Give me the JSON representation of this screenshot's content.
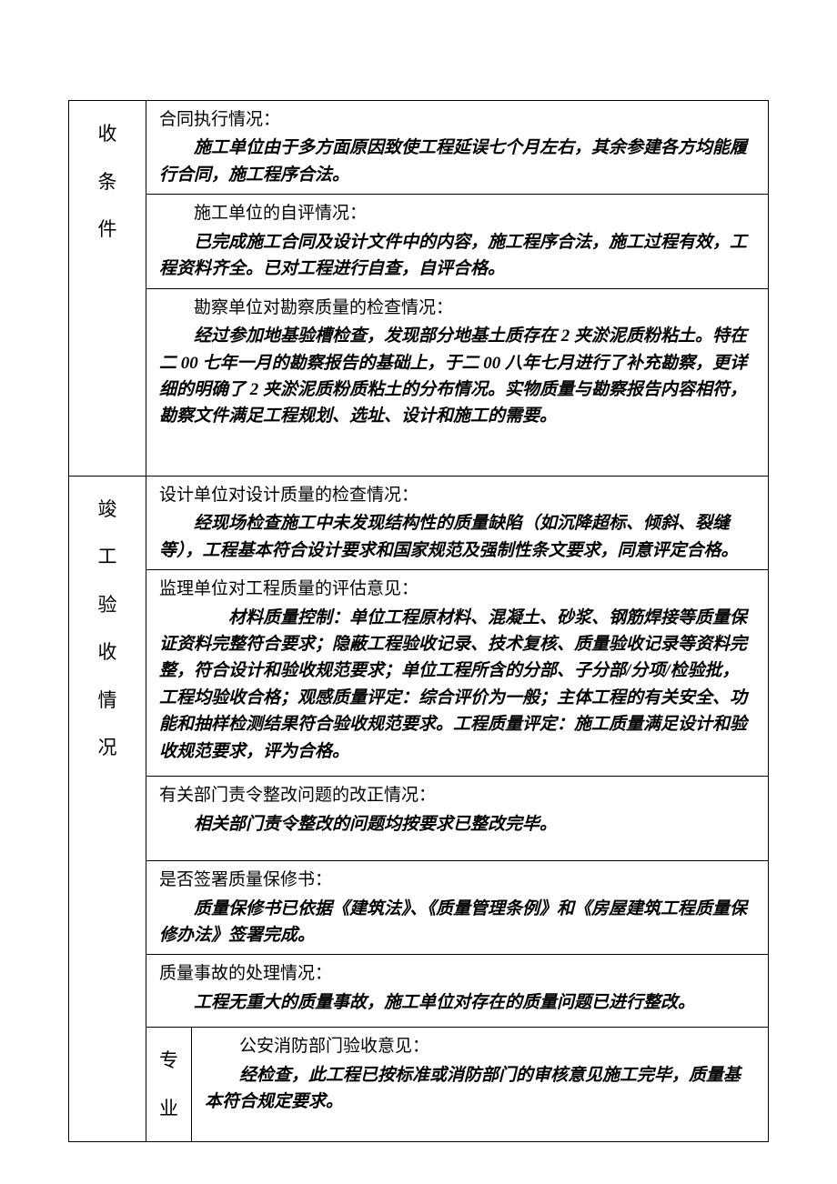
{
  "section1": {
    "sideLabel": "收\n\n条\n\n件",
    "row1": {
      "title": "合同执行情况：",
      "body": "施工单位由于多方面原因致使工程延误七个月左右，其余参建各方均能履行合同，施工程序合法。"
    },
    "row2": {
      "title": "施工单位的自评情况：",
      "body": "已完成施工合同及设计文件中的内容，施工程序合法，施工过程有效，工程资料齐全。已对工程进行自查，自评合格。"
    },
    "row3": {
      "title": "勘察单位对勘察质量的检查情况：",
      "body": "经过参加地基验槽检查，发现部分地基土质存在 2 夹淤泥质粉粘土。特在二 00 七年一月的勘察报告的基础上，于二 00 八年七月进行了补充勘察，更详细的明确了 2 夹淤泥质粉质粘土的分布情况。实物质量与勘察报告内容相符，勘察文件满足工程规划、选址、设计和施工的需要。"
    }
  },
  "section2": {
    "sideLabel": "竣\n\n工\n\n验\n\n收\n\n情\n\n况",
    "row1": {
      "title": "设计单位对设计质量的检查情况：",
      "body": "经现场检查施工中未发现结构性的质量缺陷（如沉降超标、倾斜、裂缝等），工程基本符合设计要求和国家规范及强制性条文要求，同意评定合格。"
    },
    "row2": {
      "title": "监理单位对工程质量的评估意见：",
      "body": "材料质量控制：单位工程原材料、混凝土、砂浆、钢筋焊接等质量保证资料完整符合要求；隐蔽工程验收记录、技术复核、质量验收记录等资料完整，符合设计和验收规范要求；单位工程所含的分部、子分部/分项/检验批，工程均验收合格；观感质量评定：综合评价为一般；主体工程的有关安全、功能和抽样检测结果符合验收规范要求。工程质量评定：施工质量满足设计和验收规范要求，评为合格。"
    },
    "row3": {
      "title": "有关部门责令整改问题的改正情况：",
      "body": "相关部门责令整改的问题均按要求已整改完毕。"
    },
    "row4": {
      "title": "是否签署质量保修书：",
      "body": "质量保修书已依据《建筑法》、《质量管理条例》和《房屋建筑工程质量保修办法》签署完成。"
    },
    "row5": {
      "title": "质量事故的处理情况：",
      "body": "工程无重大的质量事故，施工单位对存在的质量问题已进行整改。"
    },
    "row6": {
      "innerLabel": "专\n\n业",
      "title": "公安消防部门验收意见：",
      "body": "经检查，此工程已按标准或消防部门的审核意见施工完毕，质量基本符合规定要求。"
    }
  }
}
